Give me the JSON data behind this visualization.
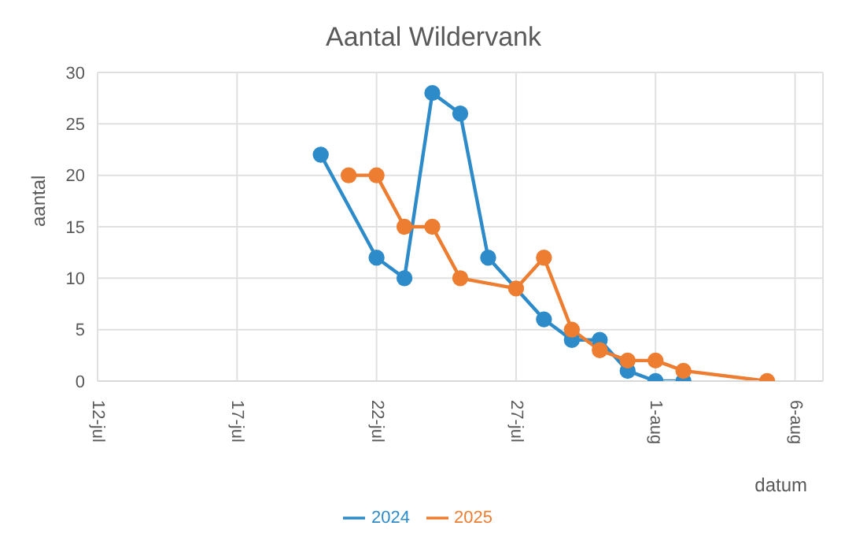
{
  "chart_data": {
    "type": "line",
    "title": "Aantal Wildervank",
    "xlabel": "datum",
    "ylabel": "aantal",
    "xlim": [
      "--07-12",
      "--08-07"
    ],
    "xticks": [
      {
        "value": "--07-12",
        "label": "12-jul"
      },
      {
        "value": "--07-17",
        "label": "17-jul"
      },
      {
        "value": "--07-22",
        "label": "22-jul"
      },
      {
        "value": "--07-27",
        "label": "27-jul"
      },
      {
        "value": "--08-01",
        "label": "1-aug"
      },
      {
        "value": "--08-06",
        "label": "6-aug"
      }
    ],
    "ylim": [
      0,
      30
    ],
    "yticks": [
      0,
      5,
      10,
      15,
      20,
      25,
      30
    ],
    "grid": true,
    "legend": "bottom",
    "marker": "circle",
    "line_style": "solid",
    "series": [
      {
        "name": "2024",
        "color": "#2e8bc9",
        "x": [
          "--07-20",
          "--07-22",
          "--07-23",
          "--07-24",
          "--07-25",
          "--07-26",
          "--07-28",
          "--07-29",
          "--07-30",
          "--07-31",
          "--08-01",
          "--08-02"
        ],
        "values": [
          22,
          12,
          10,
          28,
          26,
          12,
          6,
          4,
          4,
          1,
          0,
          0
        ]
      },
      {
        "name": "2025",
        "color": "#ed7d31",
        "x": [
          "--07-21",
          "--07-22",
          "--07-23",
          "--07-24",
          "--07-25",
          "--07-27",
          "--07-28",
          "--07-29",
          "--07-30",
          "--07-31",
          "--08-01",
          "--08-02",
          "--08-05"
        ],
        "values": [
          20,
          20,
          15,
          15,
          10,
          9,
          12,
          5,
          3,
          2,
          2,
          1,
          0
        ]
      }
    ]
  }
}
